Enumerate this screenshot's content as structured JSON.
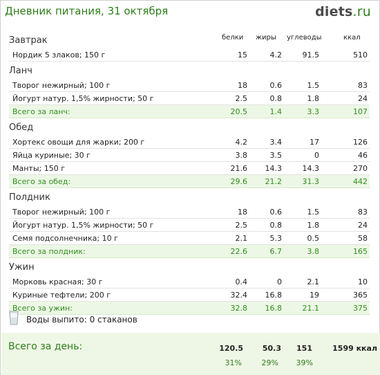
{
  "title": "Дневник питания, 31 октября",
  "logo": {
    "bold": "diets",
    "suffix": ".ru"
  },
  "columns": {
    "protein": "белки",
    "fat": "жиры",
    "carbs": "углеводы",
    "kcal": "ккал"
  },
  "meals": [
    {
      "name": "Завтрак",
      "items": [
        {
          "name": "Нордик 5 злаков; 150 г",
          "protein": "15",
          "fat": "4.2",
          "carbs": "91.5",
          "kcal": "510"
        }
      ]
    },
    {
      "name": "Ланч",
      "items": [
        {
          "name": "Творог нежирный; 100 г",
          "protein": "18",
          "fat": "0.6",
          "carbs": "1.5",
          "kcal": "83"
        },
        {
          "name": "Йогурт натур. 1,5% жирности; 50 г",
          "protein": "2.5",
          "fat": "0.8",
          "carbs": "1.8",
          "kcal": "24"
        }
      ],
      "total": {
        "label": "Всего за ланч:",
        "protein": "20.5",
        "fat": "1.4",
        "carbs": "3.3",
        "kcal": "107"
      }
    },
    {
      "name": "Обед",
      "items": [
        {
          "name": "Хортекс овощи для жарки; 200 г",
          "protein": "4.2",
          "fat": "3.4",
          "carbs": "17",
          "kcal": "126"
        },
        {
          "name": "Яйца куриные; 30 г",
          "protein": "3.8",
          "fat": "3.5",
          "carbs": "0",
          "kcal": "46"
        },
        {
          "name": "Манты; 150 г",
          "protein": "21.6",
          "fat": "14.3",
          "carbs": "14.3",
          "kcal": "270"
        }
      ],
      "total": {
        "label": "Всего за обед:",
        "protein": "29.6",
        "fat": "21.2",
        "carbs": "31.3",
        "kcal": "442"
      }
    },
    {
      "name": "Полдник",
      "items": [
        {
          "name": "Творог нежирный; 100 г",
          "protein": "18",
          "fat": "0.6",
          "carbs": "1.5",
          "kcal": "83"
        },
        {
          "name": "Йогурт натур. 1,5% жирности; 50 г",
          "protein": "2.5",
          "fat": "0.8",
          "carbs": "1.8",
          "kcal": "24"
        },
        {
          "name": "Семя подсолнечника; 10 г",
          "protein": "2.1",
          "fat": "5.3",
          "carbs": "0.5",
          "kcal": "58"
        }
      ],
      "total": {
        "label": "Всего за полдник:",
        "protein": "22.6",
        "fat": "6.7",
        "carbs": "3.8",
        "kcal": "165"
      }
    },
    {
      "name": "Ужин",
      "items": [
        {
          "name": "Морковь красная; 30 г",
          "protein": "0.4",
          "fat": "0",
          "carbs": "2.1",
          "kcal": "10"
        },
        {
          "name": "Куриные тефтели; 200 г",
          "protein": "32.4",
          "fat": "16.8",
          "carbs": "19",
          "kcal": "365"
        }
      ],
      "total": {
        "label": "Всего за ужин:",
        "protein": "32.8",
        "fat": "16.8",
        "carbs": "21.1",
        "kcal": "375"
      }
    }
  ],
  "water": {
    "icon": "water-glass-icon",
    "label": "Воды выпито:",
    "value": "0 стаканов"
  },
  "day_total": {
    "label": "Всего за день:",
    "protein": "120.5",
    "fat": "50.3",
    "carbs": "151",
    "kcal": "1599 ккал",
    "protein_pct": "31%",
    "fat_pct": "29%",
    "carbs_pct": "39%"
  },
  "colors": {
    "accent": "#2f7d1b",
    "total_bg": "#edf7e6"
  }
}
